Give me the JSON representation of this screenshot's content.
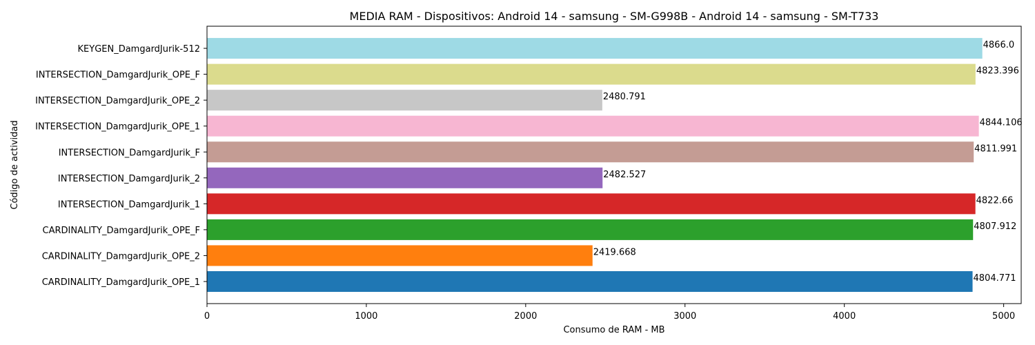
{
  "chart_data": {
    "type": "bar",
    "orientation": "horizontal",
    "title": "MEDIA RAM - Dispositivos: Android 14 - samsung - SM-G998B - Android 14 - samsung - SM-T733",
    "xlabel": "Consumo de RAM - MB",
    "ylabel": "Código de actividad",
    "xlim": [
      0,
      5110
    ],
    "xticks": [
      "0",
      "1000",
      "2000",
      "3000",
      "4000",
      "5000"
    ],
    "xtick_values": [
      0,
      1000,
      2000,
      3000,
      4000,
      5000
    ],
    "grid": false,
    "categories": [
      "CARDINALITY_DamgardJurik_OPE_1",
      "CARDINALITY_DamgardJurik_OPE_2",
      "CARDINALITY_DamgardJurik_OPE_F",
      "INTERSECTION_DamgardJurik_1",
      "INTERSECTION_DamgardJurik_2",
      "INTERSECTION_DamgardJurik_F",
      "INTERSECTION_DamgardJurik_OPE_1",
      "INTERSECTION_DamgardJurik_OPE_2",
      "INTERSECTION_DamgardJurik_OPE_F",
      "KEYGEN_DamgardJurik-512"
    ],
    "values": [
      4804.771,
      2419.668,
      4807.912,
      4822.66,
      2482.527,
      4811.991,
      4844.106,
      2480.791,
      4823.396,
      4866.0
    ],
    "value_labels": [
      "4804.771",
      "2419.668",
      "4807.912",
      "4822.66",
      "2482.527",
      "4811.991",
      "4844.106",
      "2480.791",
      "4823.396",
      "4866.0"
    ],
    "colors": [
      "#1f77b4",
      "#ff7f0e",
      "#2ca02c",
      "#d62728",
      "#9467bd",
      "#c49c94",
      "#f7b6d2",
      "#c7c7c7",
      "#dbdb8d",
      "#9edae5"
    ]
  }
}
